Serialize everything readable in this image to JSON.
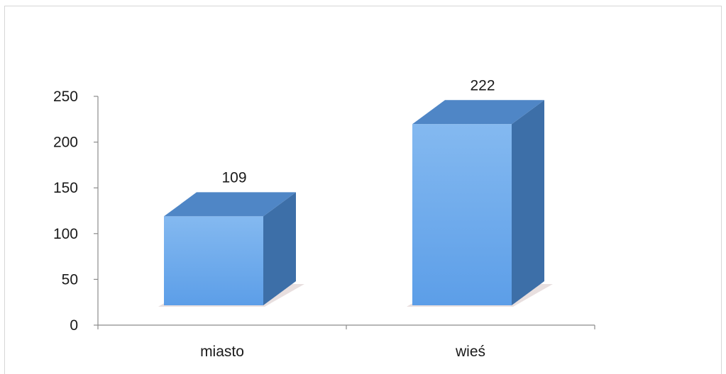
{
  "chart_data": {
    "type": "bar",
    "style": "3d-column",
    "categories": [
      "miasto",
      "wieś"
    ],
    "values": [
      109,
      222
    ],
    "data_labels": [
      "109",
      "222"
    ],
    "title": "",
    "xlabel": "",
    "ylabel": "",
    "ylim": [
      0,
      250
    ],
    "yticks": [
      0,
      50,
      100,
      150,
      200,
      250
    ],
    "ytick_labels": [
      "0",
      "50",
      "100",
      "150",
      "200",
      "250"
    ],
    "grid": false,
    "legend": "none",
    "colors": {
      "bar_front_top": "#84b9f0",
      "bar_front_bottom": "#5c9ee8",
      "bar_top": "#4f86c6",
      "bar_side": "#3d6fa8",
      "bar_shadow": "#d9c9c9",
      "axis": "#8c8c8c"
    }
  }
}
